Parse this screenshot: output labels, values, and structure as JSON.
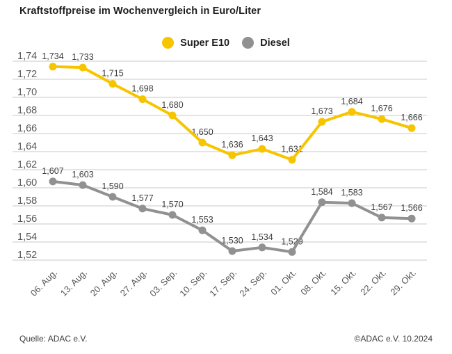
{
  "title": "Kraftstoffpreise im Wochenvergleich in Euro/Liter",
  "legend": {
    "items": [
      {
        "label": "Super E10",
        "color": "#F7C500"
      },
      {
        "label": "Diesel",
        "color": "#919191"
      }
    ]
  },
  "footer": {
    "source": "Quelle: ADAC e.V.",
    "copyright": "©ADAC e.V. 10.2024"
  },
  "colors": {
    "grid": "#C8C8C8",
    "axis_text": "#575756",
    "value_label_text": "#3C3C3B",
    "title_text": "#1D1D1B",
    "background": "#FFFFFF"
  },
  "chart_data": {
    "type": "line",
    "title": "Kraftstoffpreise im Wochenvergleich in Euro/Liter",
    "xlabel": "",
    "ylabel": "",
    "categories": [
      "06. Aug.",
      "13. Aug.",
      "20. Aug.",
      "27. Aug.",
      "03. Sep.",
      "10. Sep.",
      "17. Sep.",
      "24. Sep.",
      "01. Okt.",
      "08. Okt.",
      "15. Okt.",
      "22. Okt.",
      "29. Okt."
    ],
    "series": [
      {
        "name": "Super E10",
        "color": "#F7C500",
        "values": [
          1.734,
          1.733,
          1.715,
          1.698,
          1.68,
          1.65,
          1.636,
          1.643,
          1.631,
          1.673,
          1.684,
          1.676,
          1.666
        ]
      },
      {
        "name": "Diesel",
        "color": "#919191",
        "values": [
          1.607,
          1.603,
          1.59,
          1.577,
          1.57,
          1.553,
          1.53,
          1.534,
          1.529,
          1.584,
          1.583,
          1.567,
          1.566
        ]
      }
    ],
    "ylim": [
      1.52,
      1.74
    ],
    "ytick_step": 0.02,
    "decimal_separator": ",",
    "grid": "horizontal",
    "legend_position": "top",
    "point_labels": true
  }
}
